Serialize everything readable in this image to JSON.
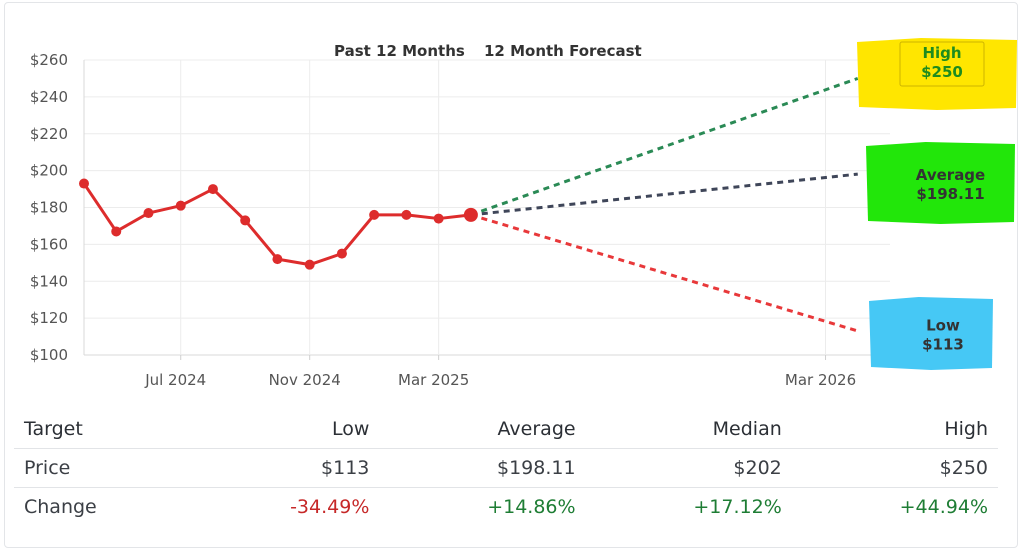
{
  "chart_data": {
    "type": "line",
    "legend": {
      "past_label": "Past 12 Months",
      "forecast_label": "12 Month Forecast"
    },
    "y_axis": {
      "min": 100,
      "max": 260,
      "step": 20,
      "ticks": [
        "$260",
        "$240",
        "$220",
        "$200",
        "$180",
        "$160",
        "$140",
        "$120",
        "$100"
      ]
    },
    "x_axis": {
      "ticks": [
        {
          "label": "Jul 2024",
          "month": 3
        },
        {
          "label": "Nov 2024",
          "month": 7
        },
        {
          "label": "Mar 2025",
          "month": 11
        },
        {
          "label": "Mar 2026",
          "month": 23
        }
      ]
    },
    "x_range": [
      0,
      25
    ],
    "series": [
      {
        "name": "Past 12 Months",
        "color": "#dd2c2c",
        "points": [
          {
            "month": 0,
            "value": 193
          },
          {
            "month": 1,
            "value": 167
          },
          {
            "month": 2,
            "value": 177
          },
          {
            "month": 3,
            "value": 181
          },
          {
            "month": 4,
            "value": 190
          },
          {
            "month": 5,
            "value": 173
          },
          {
            "month": 6,
            "value": 152
          },
          {
            "month": 7,
            "value": 149
          },
          {
            "month": 8,
            "value": 155
          },
          {
            "month": 9,
            "value": 176
          },
          {
            "month": 10,
            "value": 176
          },
          {
            "month": 11,
            "value": 174
          },
          {
            "month": 12,
            "value": 176
          }
        ]
      }
    ],
    "forecast": {
      "start": {
        "month": 12,
        "value": 176
      },
      "end_month": 24,
      "lines": [
        {
          "name": "High",
          "value": 250,
          "value_label": "$250",
          "line_color": "#2a8a55",
          "text_color": "#1e8c1e",
          "box_color": "#ffe600",
          "box_border": "#e6cf00"
        },
        {
          "name": "Average",
          "value": 198.11,
          "value_label": "$198.11",
          "line_color": "#3f4659",
          "text_color": "#333333",
          "box_color": "#22e60a",
          "box_border": "#22e60a"
        },
        {
          "name": "Low",
          "value": 113,
          "value_label": "$113",
          "line_color": "#e8383a",
          "text_color": "#333333",
          "box_color": "#46c8f5",
          "box_border": "#46c8f5"
        }
      ]
    }
  },
  "table": {
    "headers": [
      "Target",
      "Low",
      "Average",
      "Median",
      "High"
    ],
    "rows": [
      {
        "label": "Price",
        "values": [
          "$113",
          "$198.11",
          "$202",
          "$250"
        ]
      },
      {
        "label": "Change",
        "values": [
          "-34.49%",
          "+14.86%",
          "+17.12%",
          "+44.94%"
        ],
        "signs": [
          "neg",
          "pos",
          "pos",
          "pos"
        ]
      }
    ]
  }
}
